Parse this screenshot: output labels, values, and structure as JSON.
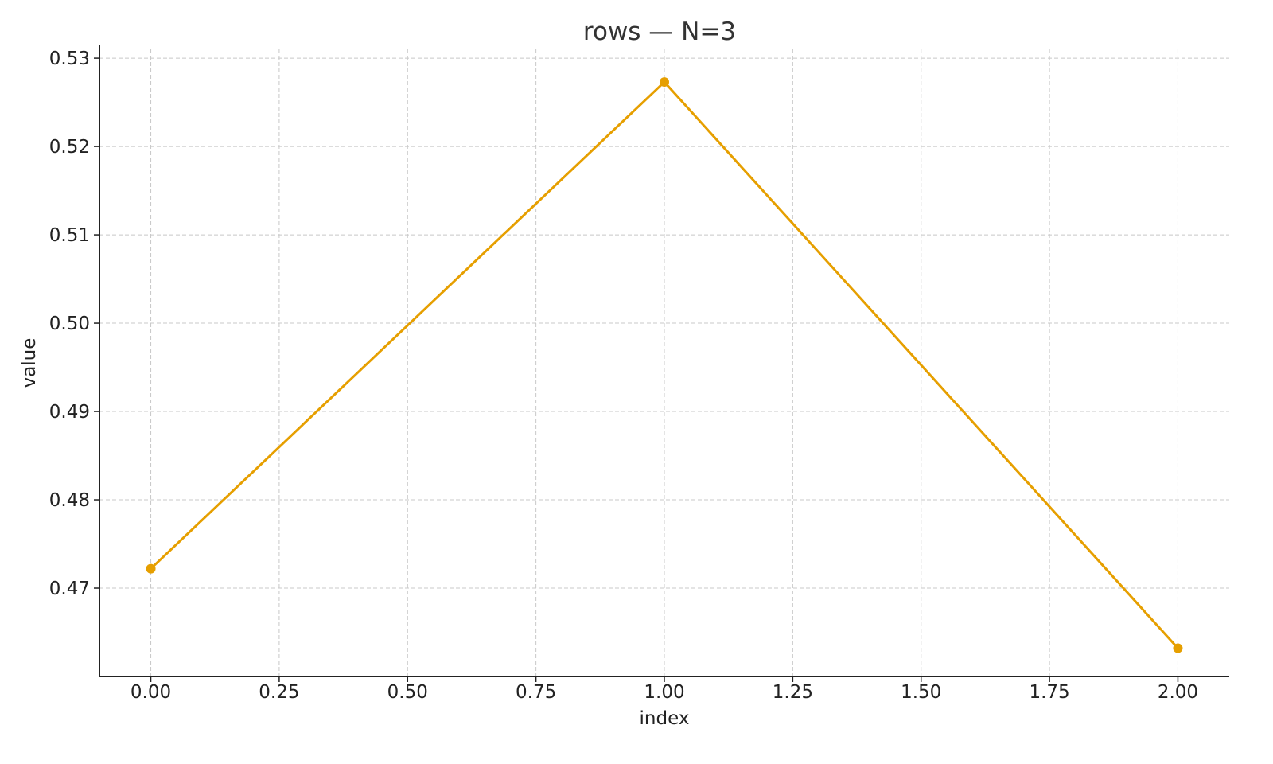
{
  "chart_data": {
    "type": "line",
    "title": "rows — N=3",
    "xlabel": "index",
    "ylabel": "value",
    "xlim": [
      -0.1,
      2.1
    ],
    "ylim": [
      0.46,
      0.531
    ],
    "x_ticks": [
      0.0,
      0.25,
      0.5,
      0.75,
      1.0,
      1.25,
      1.5,
      1.75,
      2.0
    ],
    "x_tick_labels": [
      "0.00",
      "0.25",
      "0.50",
      "0.75",
      "1.00",
      "1.25",
      "1.50",
      "1.75",
      "2.00"
    ],
    "y_ticks": [
      0.47,
      0.48,
      0.49,
      0.5,
      0.51,
      0.52,
      0.53
    ],
    "y_tick_labels": [
      "0.47",
      "0.48",
      "0.49",
      "0.50",
      "0.51",
      "0.52",
      "0.53"
    ],
    "grid": true,
    "series": [
      {
        "color": "#E69F00",
        "x": [
          0,
          1,
          2
        ],
        "y": [
          0.4722,
          0.5273,
          0.4632
        ]
      }
    ]
  }
}
